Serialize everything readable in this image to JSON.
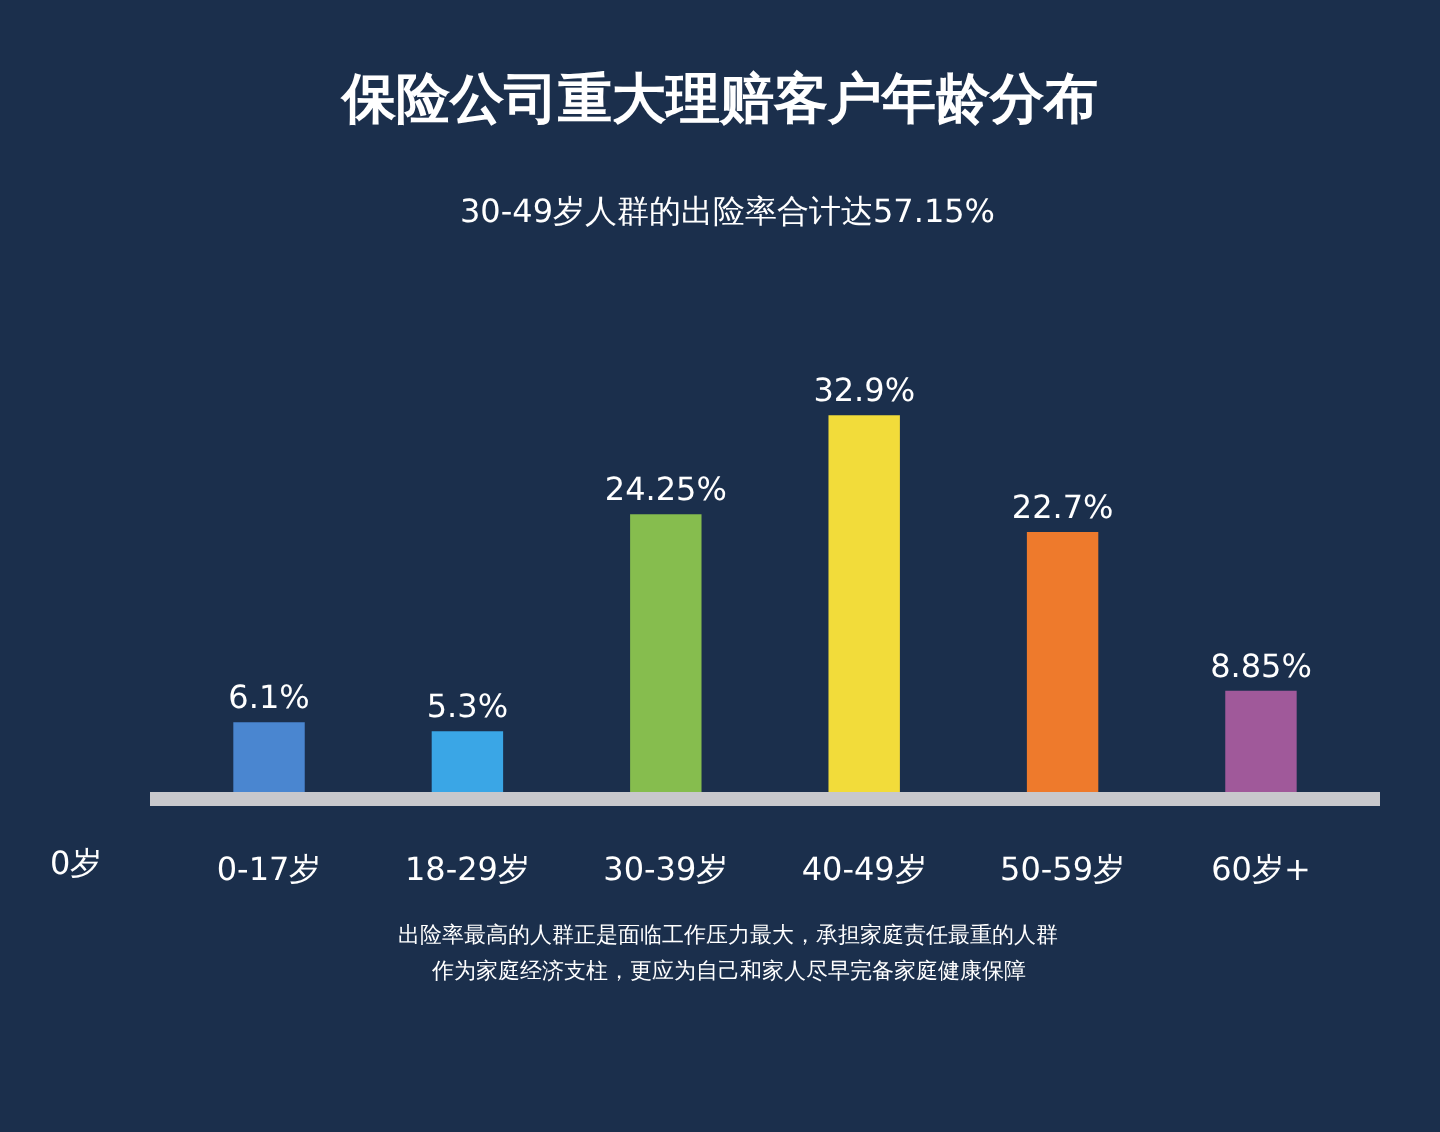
{
  "chart_data": {
    "type": "bar",
    "title": "保险公司重大理赔客户年龄分布",
    "subtitle": "30-49岁人群的出险率合计达57.15%",
    "categories": [
      "0-17岁",
      "18-29岁",
      "30-39岁",
      "40-49岁",
      "50-59岁",
      "60岁+"
    ],
    "values": [
      6.1,
      5.3,
      24.25,
      32.9,
      22.7,
      8.85
    ],
    "colors": [
      "#4a86d0",
      "#3aa6e6",
      "#86bd4e",
      "#f2dc3a",
      "#ee7a2c",
      "#a0599a"
    ],
    "value_labels": [
      "6.1%",
      "5.3%",
      "24.25%",
      "32.9%",
      "22.7%",
      "8.85%"
    ],
    "annotations": [
      "0岁",
      "出险率最高的人群正是面临工作压力最大，承担家庭责任最重的人群",
      "作为家庭经济支柱，更应为自己和家人尽早完备家庭健康保障"
    ]
  }
}
